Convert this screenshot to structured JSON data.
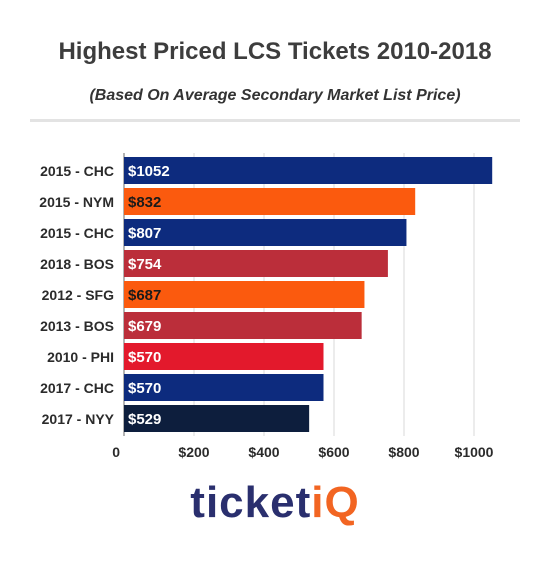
{
  "chart_data": {
    "type": "bar",
    "orientation": "horizontal",
    "title": "Highest Priced LCS Tickets 2010-2018",
    "subtitle": "(Based On Average Secondary Market List Price)",
    "categories": [
      "2015 - CHC",
      "2015 - NYM",
      "2015 - CHC",
      "2018 - BOS",
      "2012 - SFG",
      "2013 - BOS",
      "2010 - PHI",
      "2017 - CHC",
      "2017 - NYY"
    ],
    "values": [
      1052,
      832,
      807,
      754,
      687,
      679,
      570,
      570,
      529
    ],
    "value_labels": [
      "$1052",
      "$832",
      "$807",
      "$754",
      "$687",
      "$679",
      "$570",
      "$570",
      "$529"
    ],
    "colors": [
      "#0d2b7e",
      "#fb5a0e",
      "#0d2b7e",
      "#bb2e3a",
      "#fb5a0e",
      "#bb2e3a",
      "#e3192c",
      "#0d2b7e",
      "#0d1e3d"
    ],
    "label_colors": [
      "#ffffff",
      "#1a1a1a",
      "#ffffff",
      "#ffffff",
      "#1a1a1a",
      "#ffffff",
      "#ffffff",
      "#ffffff",
      "#ffffff"
    ],
    "xlim": [
      0,
      1100
    ],
    "xticks": [
      0,
      200,
      400,
      600,
      800,
      1000
    ],
    "xtick_labels": [
      "0",
      "$200",
      "$400",
      "$600",
      "$800",
      "$1000"
    ],
    "grid": true
  },
  "logo": {
    "part_a": "ticket",
    "part_b": "iQ"
  }
}
